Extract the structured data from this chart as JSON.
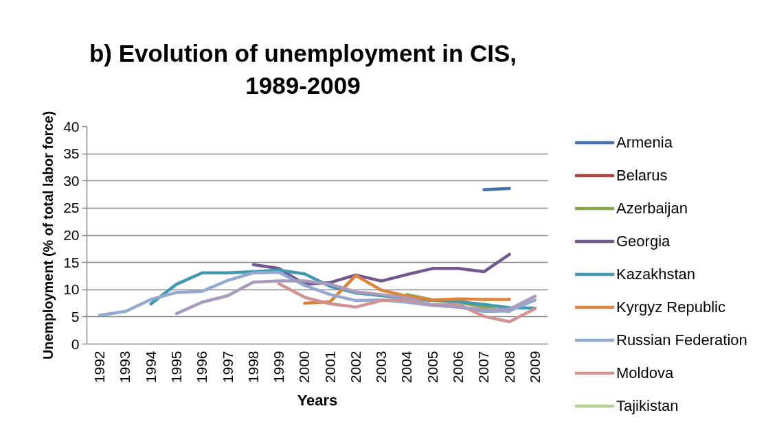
{
  "chart_data": {
    "type": "line",
    "title": "b) Evolution of unemployment in CIS, 1989-2009",
    "xlabel": "Years",
    "ylabel": "Unemployment (% of total labor force)",
    "categories": [
      "1992",
      "1993",
      "1994",
      "1995",
      "1996",
      "1997",
      "1998",
      "1999",
      "2000",
      "2001",
      "2002",
      "2003",
      "2004",
      "2005",
      "2006",
      "2007",
      "2008",
      "2009"
    ],
    "series": [
      {
        "name": "Armenia",
        "color": "#4572a7",
        "values": [
          null,
          null,
          null,
          null,
          null,
          null,
          null,
          null,
          null,
          null,
          null,
          null,
          null,
          null,
          null,
          28.4,
          28.6,
          null
        ]
      },
      {
        "name": "Belarus",
        "color": "#aa4643",
        "values": [
          null,
          null,
          null,
          null,
          null,
          null,
          null,
          null,
          null,
          null,
          null,
          null,
          null,
          null,
          null,
          null,
          null,
          null
        ]
      },
      {
        "name": "Azerbaijan",
        "color": "#89a54e",
        "values": [
          null,
          null,
          null,
          null,
          null,
          null,
          null,
          null,
          null,
          null,
          null,
          null,
          9.1,
          8.1,
          7.7,
          6.8,
          6.0,
          null
        ]
      },
      {
        "name": "Georgia",
        "color": "#71588f",
        "values": [
          null,
          null,
          null,
          null,
          null,
          null,
          14.6,
          13.9,
          11.0,
          11.3,
          12.7,
          11.6,
          12.8,
          13.9,
          13.9,
          13.3,
          16.5,
          null
        ]
      },
      {
        "name": "Kazakhstan",
        "color": "#4198af",
        "values": [
          null,
          null,
          7.4,
          11.0,
          13.1,
          13.1,
          13.3,
          13.6,
          12.9,
          10.6,
          9.4,
          8.9,
          8.4,
          8.0,
          7.8,
          7.3,
          6.7,
          6.6
        ]
      },
      {
        "name": "Kyrgyz Republic",
        "color": "#db843d",
        "values": [
          null,
          null,
          null,
          null,
          null,
          null,
          null,
          null,
          7.5,
          7.8,
          12.6,
          9.9,
          8.8,
          8.1,
          8.3,
          8.2,
          8.2,
          null
        ]
      },
      {
        "name": "Russian Federation",
        "color": "#93a9cf",
        "values": [
          5.3,
          6.0,
          8.2,
          9.5,
          9.7,
          11.7,
          13.1,
          13.2,
          10.8,
          9.1,
          8.0,
          8.1,
          7.7,
          7.1,
          6.8,
          6.0,
          6.1,
          8.1
        ]
      },
      {
        "name": "Moldova",
        "color": "#d19392",
        "values": [
          null,
          null,
          null,
          null,
          null,
          null,
          null,
          11.1,
          8.6,
          7.4,
          6.8,
          8.0,
          8.1,
          7.2,
          7.3,
          5.1,
          4.1,
          6.5
        ]
      },
      {
        "name": "Tajikistan",
        "color": "#b9cd96",
        "values": [
          null,
          null,
          null,
          null,
          null,
          null,
          null,
          null,
          null,
          null,
          null,
          null,
          null,
          null,
          null,
          null,
          null,
          null
        ]
      },
      {
        "color": "#a99bbd",
        "values": [
          null,
          null,
          null,
          5.6,
          7.7,
          8.9,
          11.4,
          11.6,
          11.6,
          11.0,
          9.6,
          9.1,
          8.5,
          7.2,
          6.8,
          6.3,
          6.4,
          8.8
        ]
      }
    ],
    "ylim": [
      0,
      40
    ],
    "yticks": [
      0,
      5,
      10,
      15,
      20,
      25,
      30,
      35,
      40
    ],
    "grid": "y",
    "legend": "right"
  }
}
